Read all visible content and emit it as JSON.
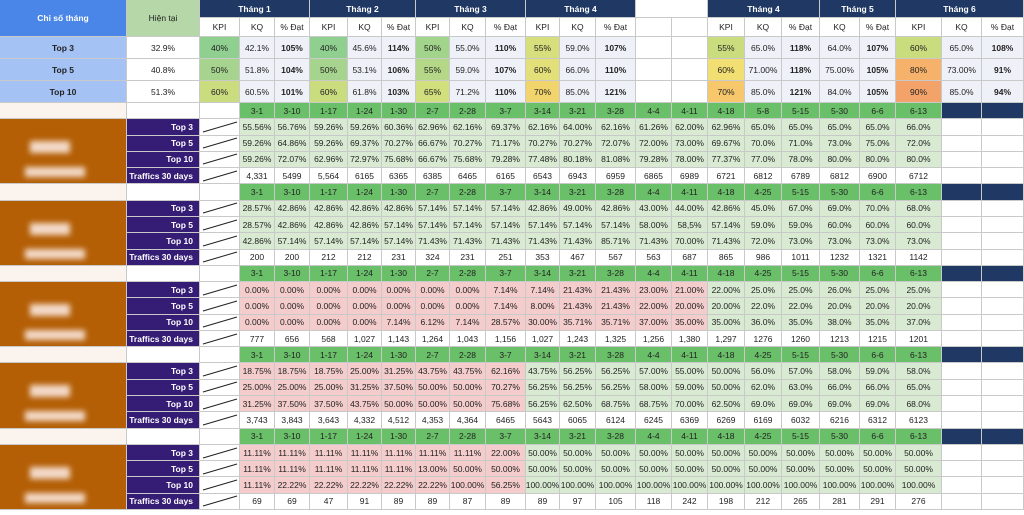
{
  "header": {
    "corner": "Chỉ số tháng",
    "current": "Hiện tại",
    "months": [
      "Tháng 1",
      "Tháng 2",
      "Tháng 3",
      "Tháng 4",
      null,
      "Tháng 4",
      "Tháng 5",
      "Tháng 6"
    ],
    "subheaders": [
      "KPI",
      "KQ",
      "% Đạt",
      "KPI",
      "KQ",
      "% Đạt",
      "KPI",
      "KQ",
      "% Đạt",
      "KPI",
      "KQ",
      "% Đạt",
      null,
      null,
      "KPI",
      "KQ",
      "% Đạt",
      "KQ",
      "% Đạt",
      "KPI",
      "KQ",
      "% Đạt"
    ]
  },
  "summary": [
    {
      "label": "Top 3",
      "current": "32.9%",
      "cells": [
        "40%",
        "42.1%",
        "105%",
        "40%",
        "45.6%",
        "114%",
        "50%",
        "55.0%",
        "110%",
        "55%",
        "59.0%",
        "107%",
        null,
        null,
        "55%",
        "65.0%",
        "118%",
        "64.0%",
        "107%",
        "60%",
        "65.0%",
        "108%"
      ]
    },
    {
      "label": "Top 5",
      "current": "40.8%",
      "cells": [
        "50%",
        "51.8%",
        "104%",
        "50%",
        "53.1%",
        "106%",
        "55%",
        "59.0%",
        "107%",
        "60%",
        "66.0%",
        "110%",
        null,
        null,
        "60%",
        "71.00%",
        "118%",
        "75.00%",
        "105%",
        "80%",
        "73.00%",
        "91%"
      ]
    },
    {
      "label": "Top 10",
      "current": "51.3%",
      "cells": [
        "60%",
        "60.5%",
        "101%",
        "60%",
        "61.8%",
        "103%",
        "65%",
        "71.2%",
        "110%",
        "70%",
        "85.0%",
        "121%",
        null,
        null,
        "70%",
        "85.0%",
        "121%",
        "84.0%",
        "105%",
        "90%",
        "85.0%",
        "94%"
      ]
    }
  ],
  "blocks": [
    {
      "dates": [
        "3-1",
        "3-10",
        "1-17",
        "1-24",
        "1-30",
        "2-7",
        "2-28",
        "3-7",
        "3-14",
        "3-21",
        "3-28",
        "4-4",
        "4-11",
        "4-18",
        "5-8",
        "5-15",
        "5-30",
        "6-6",
        "6-13"
      ],
      "rows": [
        {
          "label": "Top 3",
          "values": [
            "55.56%",
            "56.76%",
            "59.26%",
            "59.26%",
            "60.36%",
            "62.96%",
            "62.16%",
            "69.37%",
            "62.16%",
            "64.00%",
            "62.16%",
            "61.26%",
            "62.00%",
            "62.96%",
            "65.0%",
            "65.0%",
            "65.0%",
            "65.0%",
            "66.0%"
          ]
        },
        {
          "label": "Top 5",
          "values": [
            "59.26%",
            "64.86%",
            "59.26%",
            "69.37%",
            "70.27%",
            "66.67%",
            "70.27%",
            "71.17%",
            "70.27%",
            "70.27%",
            "72.07%",
            "72.00%",
            "73.00%",
            "69.67%",
            "70.0%",
            "71.0%",
            "73.0%",
            "75.0%",
            "72.0%"
          ]
        },
        {
          "label": "Top 10",
          "values": [
            "59.26%",
            "72.07%",
            "62.96%",
            "72.97%",
            "75.68%",
            "66.67%",
            "75.68%",
            "79.28%",
            "77.48%",
            "80.18%",
            "81.08%",
            "79.28%",
            "78.00%",
            "77.37%",
            "77.0%",
            "78.0%",
            "80.0%",
            "80.0%",
            "80.0%"
          ]
        },
        {
          "label": "Traffics 30 days",
          "values": [
            "4,331",
            "5499",
            "5,564",
            "6165",
            "6365",
            "6385",
            "6465",
            "6165",
            "6543",
            "6943",
            "6959",
            "6865",
            "6989",
            "6721",
            "6812",
            "6789",
            "6812",
            "6900",
            "6712"
          ]
        }
      ]
    },
    {
      "dates": [
        "3-1",
        "3-10",
        "1-17",
        "1-24",
        "1-30",
        "2-7",
        "2-28",
        "3-7",
        "3-14",
        "3-21",
        "3-28",
        "4-4",
        "4-11",
        "4-18",
        "4-25",
        "5-15",
        "5-30",
        "6-6",
        "6-13"
      ],
      "rows": [
        {
          "label": "Top 3",
          "values": [
            "28.57%",
            "42.86%",
            "42.86%",
            "42.86%",
            "42.86%",
            "57.14%",
            "57.14%",
            "57.14%",
            "42.86%",
            "49.00%",
            "42.86%",
            "43.00%",
            "44.00%",
            "42.86%",
            "45.0%",
            "67.0%",
            "69.0%",
            "70.0%",
            "68.0%"
          ]
        },
        {
          "label": "Top 5",
          "values": [
            "28.57%",
            "42.86%",
            "42.86%",
            "42.86%",
            "57.14%",
            "57.14%",
            "57.14%",
            "57.14%",
            "57.14%",
            "57.14%",
            "57.14%",
            "58.00%",
            "58,5%",
            "57.14%",
            "59.0%",
            "59.0%",
            "60.0%",
            "60.0%",
            "60.0%"
          ]
        },
        {
          "label": "Top 10",
          "values": [
            "42.86%",
            "57.14%",
            "57.14%",
            "57.14%",
            "57.14%",
            "71.43%",
            "71.43%",
            "71.43%",
            "71.43%",
            "71.43%",
            "85.71%",
            "71.43%",
            "70.00%",
            "71.43%",
            "72.0%",
            "73.0%",
            "73.0%",
            "73.0%",
            "73.0%"
          ]
        },
        {
          "label": "Traffics 30 days",
          "values": [
            "200",
            "200",
            "212",
            "212",
            "231",
            "324",
            "231",
            "251",
            "353",
            "467",
            "567",
            "563",
            "687",
            "865",
            "986",
            "1011",
            "1232",
            "1321",
            "1142"
          ]
        }
      ]
    },
    {
      "dates": [
        "3-1",
        "3-10",
        "1-17",
        "1-24",
        "1-30",
        "2-7",
        "2-28",
        "3-7",
        "3-14",
        "3-21",
        "3-28",
        "4-4",
        "4-11",
        "4-18",
        "4-25",
        "5-15",
        "5-30",
        "6-6",
        "6-13"
      ],
      "rows": [
        {
          "label": "Top 3",
          "values": [
            "0.00%",
            "0.00%",
            "0.00%",
            "0.00%",
            "0.00%",
            "0.00%",
            "0.00%",
            "7.14%",
            "7.14%",
            "21.43%",
            "21.43%",
            "23.00%",
            "21.00%",
            "22.00%",
            "25.0%",
            "25.0%",
            "26.0%",
            "25.0%",
            "25.0%"
          ]
        },
        {
          "label": "Top 5",
          "values": [
            "0.00%",
            "0.00%",
            "0.00%",
            "0.00%",
            "0.00%",
            "0.00%",
            "0.00%",
            "7.14%",
            "8.00%",
            "21.43%",
            "21.43%",
            "22.00%",
            "20.00%",
            "20.00%",
            "22.0%",
            "22.0%",
            "20.0%",
            "20.0%",
            "20.0%"
          ]
        },
        {
          "label": "Top 10",
          "values": [
            "0.00%",
            "0.00%",
            "0.00%",
            "0.00%",
            "7.14%",
            "6.12%",
            "7.14%",
            "28.57%",
            "30.00%",
            "35.71%",
            "35.71%",
            "37.00%",
            "35.00%",
            "35.00%",
            "36.0%",
            "35.0%",
            "38.0%",
            "35.0%",
            "37.0%"
          ]
        },
        {
          "label": "Traffics 30 days",
          "values": [
            "777",
            "656",
            "568",
            "1,027",
            "1,143",
            "1,264",
            "1,043",
            "1,156",
            "1,027",
            "1,243",
            "1,325",
            "1,256",
            "1,380",
            "1,297",
            "1276",
            "1260",
            "1213",
            "1215",
            "1201"
          ]
        }
      ]
    },
    {
      "dates": [
        "3-1",
        "3-10",
        "1-17",
        "1-24",
        "1-30",
        "2-7",
        "2-28",
        "3-7",
        "3-14",
        "3-21",
        "3-28",
        "4-4",
        "4-11",
        "4-18",
        "4-25",
        "5-15",
        "5-30",
        "6-6",
        "6-13"
      ],
      "rows": [
        {
          "label": "Top 3",
          "values": [
            "18.75%",
            "18.75%",
            "18.75%",
            "25.00%",
            "31.25%",
            "43.75%",
            "43.75%",
            "62.16%",
            "43.75%",
            "56.25%",
            "56.25%",
            "57.00%",
            "55.00%",
            "50.00%",
            "56.0%",
            "57.0%",
            "58.0%",
            "59.0%",
            "58.0%"
          ]
        },
        {
          "label": "Top 5",
          "values": [
            "25.00%",
            "25.00%",
            "25.00%",
            "31.25%",
            "37.50%",
            "50.00%",
            "50.00%",
            "70.27%",
            "56.25%",
            "56.25%",
            "56.25%",
            "58.00%",
            "59.00%",
            "50.00%",
            "62.0%",
            "63.0%",
            "66.0%",
            "66.0%",
            "65.0%"
          ]
        },
        {
          "label": "Top 10",
          "values": [
            "31.25%",
            "37.50%",
            "37.50%",
            "43.75%",
            "50.00%",
            "50.00%",
            "50.00%",
            "75.68%",
            "56.25%",
            "62.50%",
            "68.75%",
            "68.75%",
            "70.00%",
            "62.50%",
            "69.0%",
            "69.0%",
            "69.0%",
            "69.0%",
            "68.0%"
          ]
        },
        {
          "label": "Traffics 30 days",
          "values": [
            "3,743",
            "3,843",
            "3,643",
            "4,332",
            "4,512",
            "4,353",
            "4,364",
            "6465",
            "5643",
            "6065",
            "6124",
            "6245",
            "6369",
            "6269",
            "6169",
            "6032",
            "6216",
            "6312",
            "6123"
          ]
        }
      ]
    },
    {
      "dates": [
        "3-1",
        "3-10",
        "1-17",
        "1-24",
        "1-30",
        "2-7",
        "2-28",
        "3-7",
        "3-14",
        "3-21",
        "3-28",
        "4-4",
        "4-11",
        "4-18",
        "4-25",
        "5-15",
        "5-30",
        "6-6",
        "6-13"
      ],
      "rows": [
        {
          "label": "Top 3",
          "values": [
            "11.11%",
            "11.11%",
            "11.11%",
            "11.11%",
            "11.11%",
            "11.11%",
            "11.11%",
            "22.00%",
            "50.00%",
            "50.00%",
            "50.00%",
            "50.00%",
            "50.00%",
            "50.00%",
            "50.00%",
            "50.00%",
            "50.00%",
            "50.00%",
            "50.00%"
          ]
        },
        {
          "label": "Top 5",
          "values": [
            "11.11%",
            "11.11%",
            "11.11%",
            "11.11%",
            "11.11%",
            "13.00%",
            "50.00%",
            "50.00%",
            "50.00%",
            "50.00%",
            "50.00%",
            "50.00%",
            "50.00%",
            "50.00%",
            "50.00%",
            "50.00%",
            "50.00%",
            "50.00%",
            "50.00%"
          ]
        },
        {
          "label": "Top 10",
          "values": [
            "11.11%",
            "22.22%",
            "22.22%",
            "22.22%",
            "22.22%",
            "22.22%",
            "100.00%",
            "56.25%",
            "100.00%",
            "100.00%",
            "100.00%",
            "100.00%",
            "100.00%",
            "100.00%",
            "100.00%",
            "100.00%",
            "100.00%",
            "100.00%",
            "100.00%"
          ]
        },
        {
          "label": "Traffics 30 days",
          "values": [
            "69",
            "69",
            "47",
            "91",
            "89",
            "89",
            "87",
            "89",
            "89",
            "97",
            "105",
            "118",
            "242",
            "198",
            "212",
            "265",
            "281",
            "291",
            "276"
          ]
        }
      ]
    }
  ]
}
